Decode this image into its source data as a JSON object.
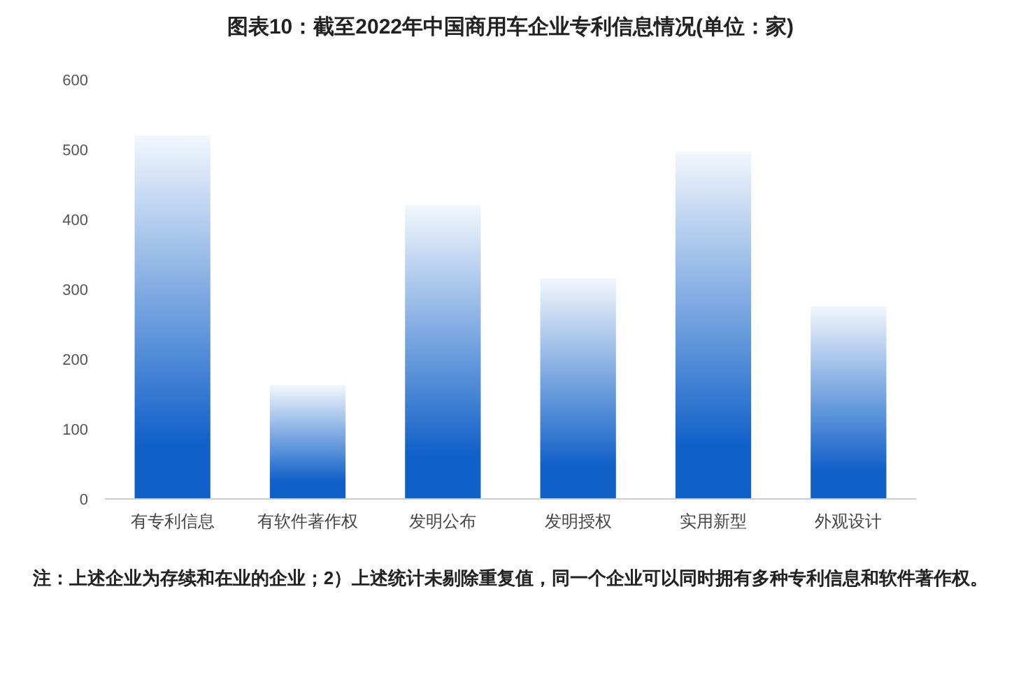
{
  "chart_data": {
    "type": "bar",
    "title": "图表10：截至2022年中国商用车企业专利信息情况(单位：家)",
    "categories": [
      "有专利信息",
      "有软件著作权",
      "发明公布",
      "发明授权",
      "实用新型",
      "外观设计"
    ],
    "values": [
      520,
      163,
      421,
      316,
      497,
      276
    ],
    "color": "#1060c8",
    "ylim": [
      0,
      600
    ],
    "yticks": [
      0,
      100,
      200,
      300,
      400,
      500,
      600
    ],
    "grid": false,
    "annotations": [
      "注：上述企业为存续和在业的企业；2）上述统计未剔除重复值，同一个企业可以同时拥有多种专利信息和软件著作权。"
    ]
  }
}
